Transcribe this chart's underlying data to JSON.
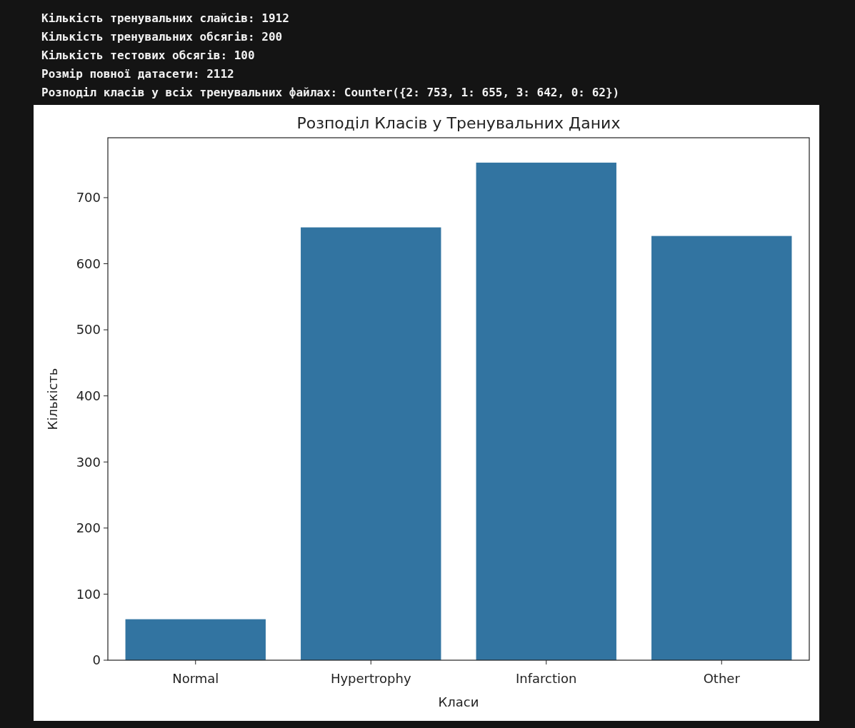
{
  "chart_data": {
    "type": "bar",
    "title": "Розподіл Класів у Тренувальних Даних",
    "xlabel": "Класи",
    "ylabel": "Кількість",
    "categories": [
      "Normal",
      "Hypertrophy",
      "Infarction",
      "Other"
    ],
    "values": [
      62,
      655,
      753,
      642
    ],
    "color": "#3274a1",
    "ylim": [
      0,
      790.65
    ],
    "yticks": [
      0,
      100,
      200,
      300,
      400,
      500,
      600,
      700
    ],
    "annotations": [
      "Кількість тренувальних слайсів: 1912",
      "Кількість тренувальних обсягів: 200",
      "Кількість тестових обсягів: 100",
      "Розмір повної датасети: 2112",
      "Розподіл класів у всіх тренувальних файлах: Counter({2: 753, 1: 655, 3: 642, 0: 62})"
    ]
  }
}
